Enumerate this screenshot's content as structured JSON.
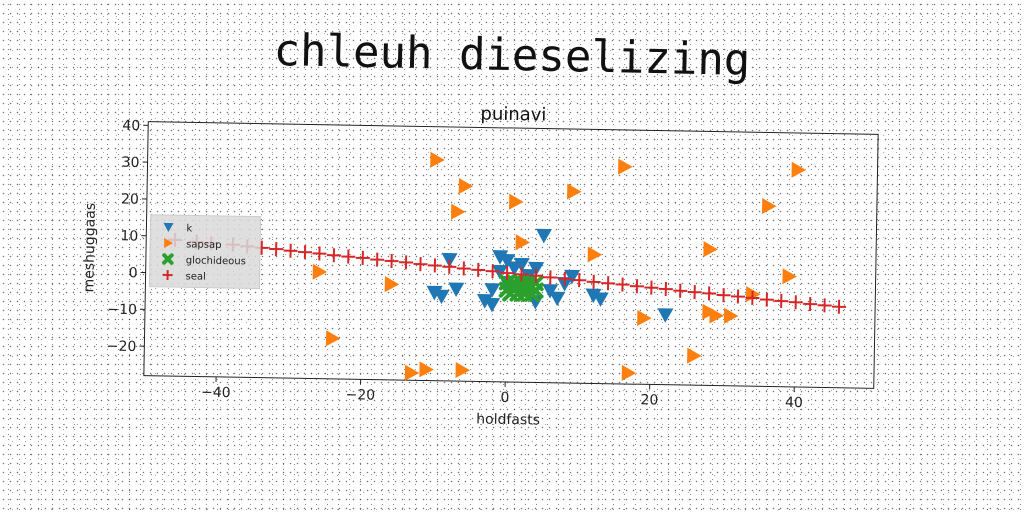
{
  "suptitle": "chleuh dieselizing",
  "chart_data": {
    "type": "scatter",
    "title": "puinavi",
    "xlabel": "holdfasts",
    "ylabel": "meshuggaas",
    "xlim": [
      -50,
      51
    ],
    "ylim": [
      -28,
      41
    ],
    "xticks": [
      -40,
      -20,
      0,
      20,
      40
    ],
    "yticks": [
      -20,
      -10,
      0,
      10,
      20,
      30,
      40
    ],
    "legend_position": "center-left",
    "grid": false,
    "series": [
      {
        "name": "k",
        "marker": "triangle-down",
        "color": "#1f77b4",
        "x": [
          -1,
          0,
          2,
          4,
          5,
          -8,
          -7,
          -9,
          -10,
          -3,
          -2,
          1,
          3,
          6,
          8,
          12,
          13,
          4,
          -2,
          0,
          3,
          7,
          22,
          9,
          -1
        ],
        "y": [
          6,
          5,
          4,
          3,
          12,
          5,
          -3,
          -5,
          -4,
          -6,
          -7,
          3,
          1,
          -3,
          -1,
          -4,
          -5,
          -6,
          -3,
          -1,
          -3,
          -5,
          -9,
          1,
          2
        ]
      },
      {
        "name": "sapsap",
        "marker": "triangle-right",
        "color": "#ff7f0e",
        "x": [
          -10,
          -6,
          1,
          9,
          16,
          40,
          36,
          -7,
          2,
          12,
          28,
          39,
          -26,
          -16,
          -24,
          -13,
          -6,
          -11,
          17,
          26,
          19,
          28,
          29,
          31,
          34
        ],
        "y": [
          32,
          25,
          21,
          24,
          31,
          31,
          21,
          18,
          10,
          7,
          9,
          2,
          1,
          -2,
          -17,
          -26,
          -25,
          -25,
          -25,
          -20,
          -10,
          -8,
          -9,
          -9,
          -3
        ]
      },
      {
        "name": "glochideous",
        "marker": "x",
        "color": "#2ca02c",
        "x": [
          0,
          1,
          2,
          3,
          4,
          0.5,
          1.5,
          2.5,
          3.5,
          1,
          2,
          3,
          0,
          4,
          2.5
        ],
        "y": [
          -3,
          -2,
          -3,
          -2,
          -3,
          -4,
          -4,
          -4,
          -4,
          -1,
          -1,
          -1,
          -1,
          -1,
          -2.5
        ]
      },
      {
        "name": "seal",
        "marker": "plus",
        "color": "#d62728",
        "x": [
          -46,
          -43,
          -41,
          -38,
          -36,
          -34,
          -32,
          -30,
          -28,
          -26,
          -24,
          -22,
          -20,
          -18,
          -16,
          -14,
          -12,
          -10,
          -8,
          -6,
          -4,
          -2,
          0,
          2,
          4,
          6,
          8,
          10,
          12,
          14,
          16,
          18,
          20,
          22,
          24,
          26,
          28,
          30,
          32,
          34,
          36,
          38,
          40,
          42,
          44,
          46
        ],
        "y": [
          9,
          8.6,
          8.3,
          8,
          7.6,
          7.3,
          7,
          6.6,
          6.3,
          6,
          5.6,
          5.3,
          5,
          4.6,
          4.3,
          4,
          3.6,
          3.3,
          3,
          2.6,
          2.3,
          2,
          1.6,
          1.3,
          1,
          0.6,
          0.3,
          0,
          -0.4,
          -0.7,
          -1,
          -1.4,
          -1.7,
          -2,
          -2.4,
          -2.7,
          -3,
          -3.4,
          -3.7,
          -4,
          -4.4,
          -4.7,
          -5,
          -5.4,
          -5.7,
          -6
        ]
      }
    ]
  }
}
